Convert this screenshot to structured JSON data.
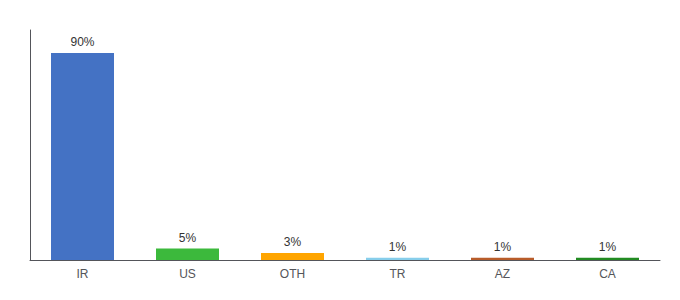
{
  "chart_data": {
    "type": "bar",
    "categories": [
      "IR",
      "US",
      "OTH",
      "TR",
      "AZ",
      "CA"
    ],
    "values": [
      90,
      5,
      3,
      1,
      1,
      1
    ],
    "value_labels": [
      "90%",
      "5%",
      "3%",
      "1%",
      "1%",
      "1%"
    ],
    "colors": [
      "#4472C4",
      "#3CB93C",
      "#FFA500",
      "#87CEEB",
      "#B85C2A",
      "#228B22"
    ],
    "ylim": [
      0,
      100
    ],
    "data_labels": true,
    "tick_labels": "x",
    "grid": false
  }
}
